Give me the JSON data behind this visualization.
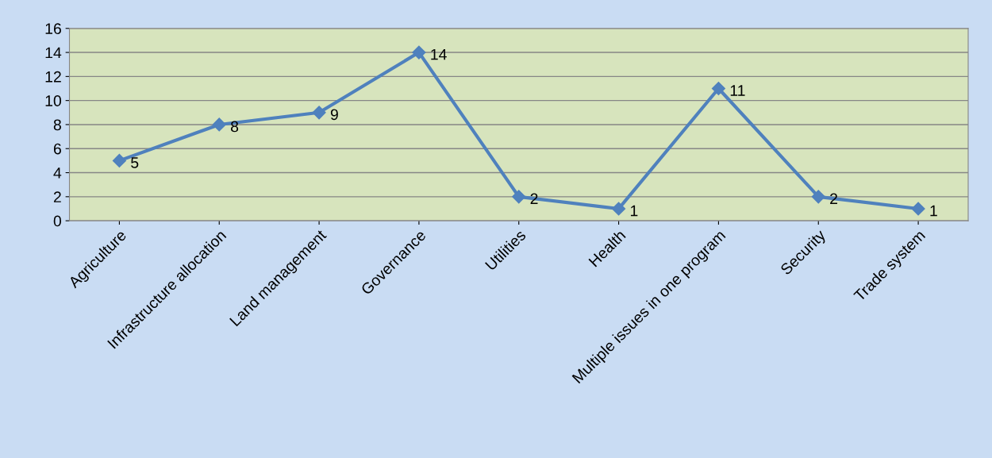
{
  "chart_data": {
    "type": "line",
    "categories": [
      "Agriculture",
      "Infrastructure allocation",
      "Land management",
      "Governance",
      "Utilities",
      "Health",
      "Multiple issues in one program",
      "Security",
      "Trade system"
    ],
    "series": [
      {
        "color": "#4f81bd",
        "values": [
          5,
          8,
          9,
          14,
          2,
          1,
          11,
          2,
          1
        ]
      }
    ],
    "ylim": [
      0,
      16
    ],
    "yticks": [
      0,
      2,
      4,
      6,
      8,
      10,
      12,
      14,
      16
    ],
    "grid": "y",
    "marker": "diamond",
    "line_style": "solid",
    "data_labels": true,
    "legend": false
  }
}
